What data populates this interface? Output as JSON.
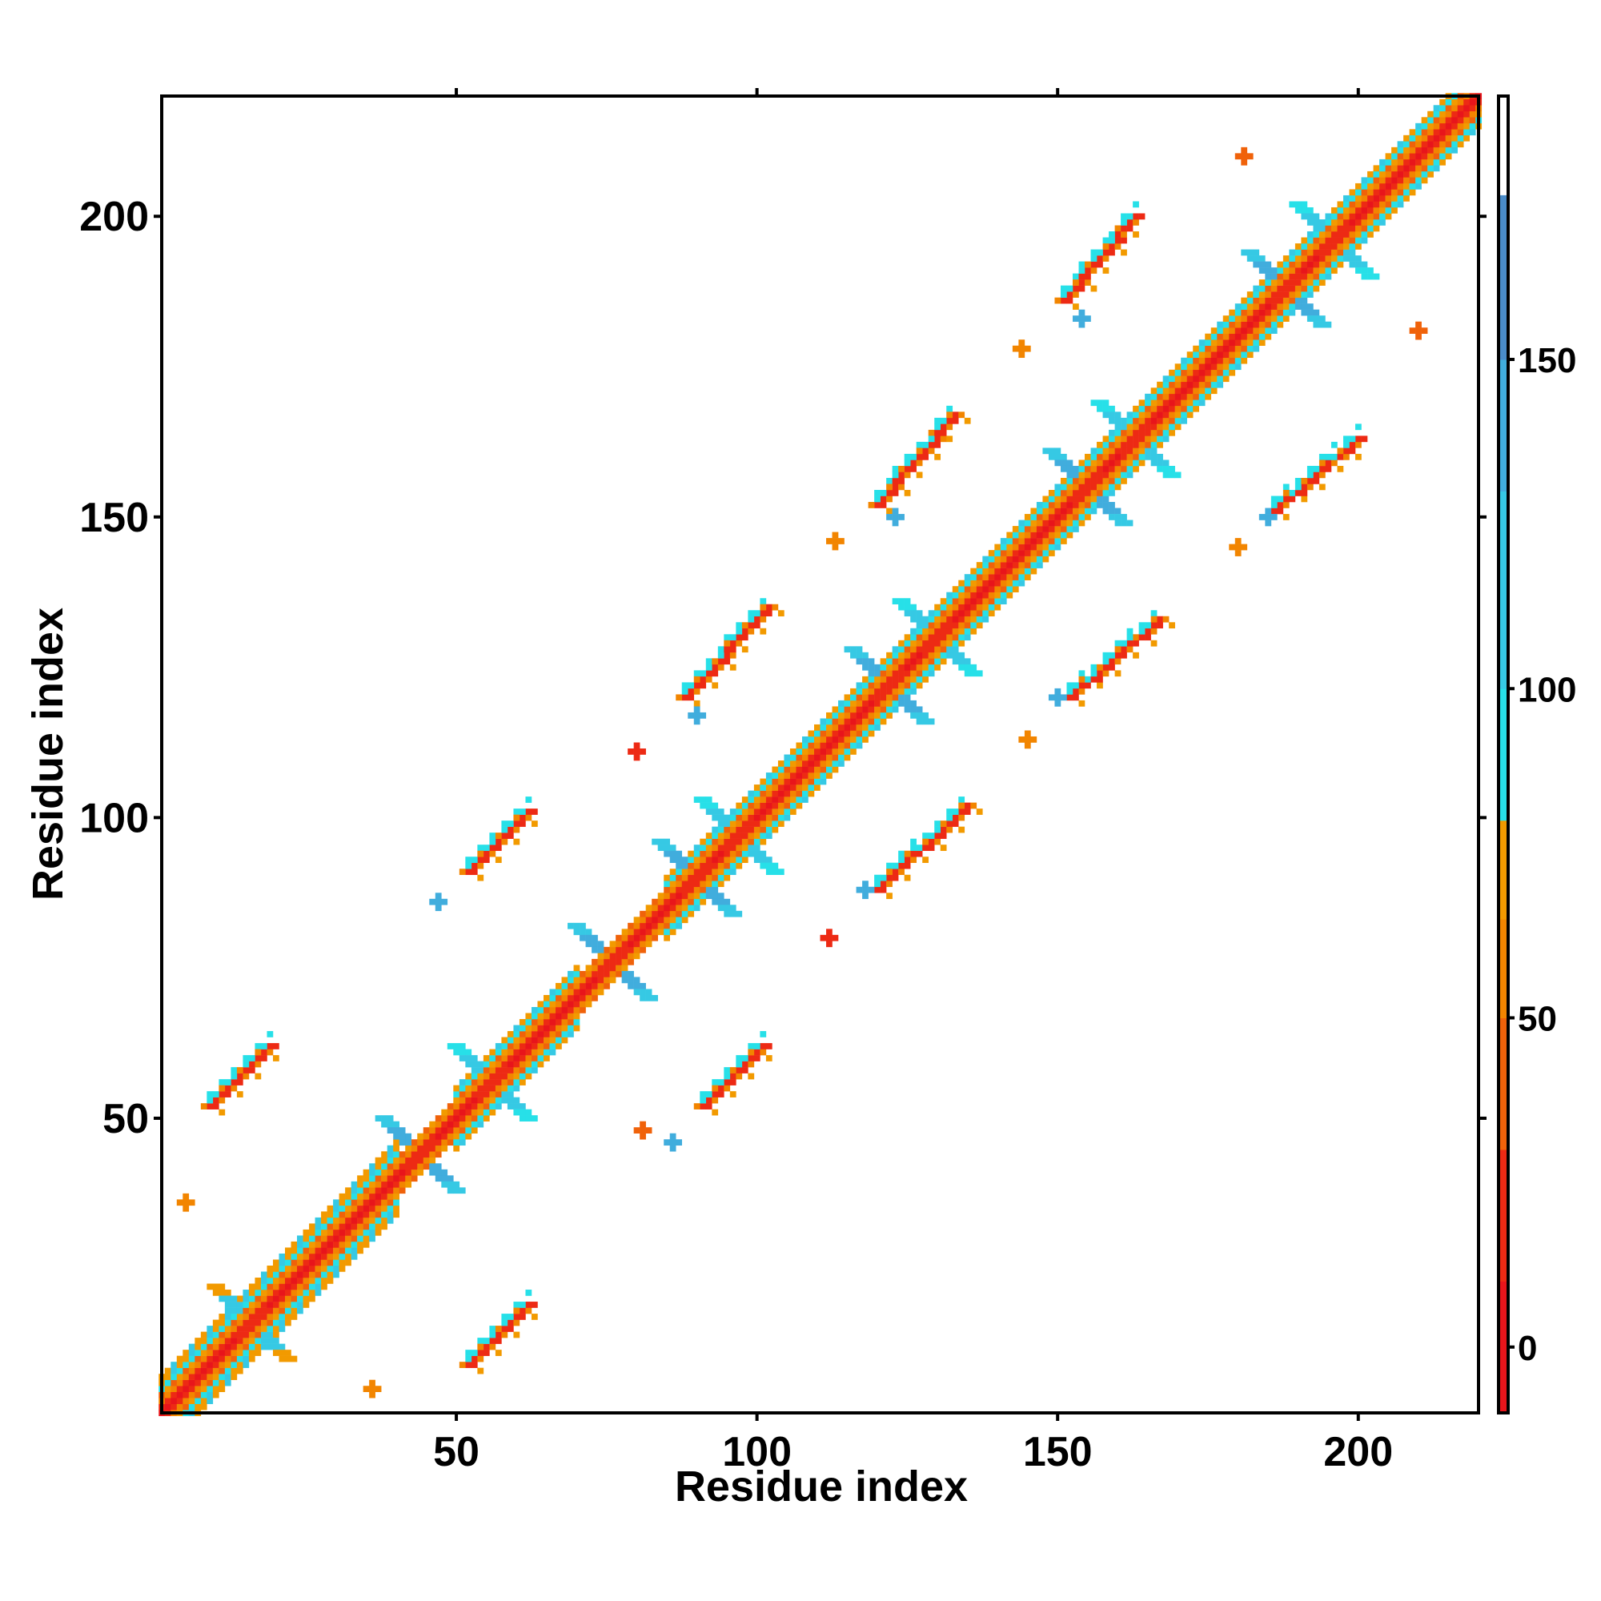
{
  "chart_data": {
    "type": "heatmap",
    "title": "",
    "xlabel": "Residue index",
    "ylabel": "Residue index",
    "xlim": [
      1,
      220
    ],
    "ylim": [
      1,
      220
    ],
    "x_ticks": [
      50,
      100,
      150,
      200
    ],
    "y_ticks": [
      50,
      100,
      150,
      200
    ],
    "x_tick_labels": [
      "50",
      "100",
      "150",
      "200"
    ],
    "y_tick_labels": [
      "50",
      "100",
      "150",
      "200"
    ],
    "grid": false,
    "legend": "colorbar-right",
    "colorbar": {
      "range": [
        -10,
        190
      ],
      "ticks": [
        0,
        50,
        100,
        150
      ],
      "tick_labels": [
        "0",
        "50",
        "100",
        "150"
      ],
      "stops": [
        {
          "from": -10,
          "to": 10,
          "color": "#e8151b"
        },
        {
          "from": 10,
          "to": 30,
          "color": "#ed2a14"
        },
        {
          "from": 30,
          "to": 50,
          "color": "#f0620a"
        },
        {
          "from": 50,
          "to": 65,
          "color": "#f28500"
        },
        {
          "from": 65,
          "to": 80,
          "color": "#f29a00"
        },
        {
          "from": 80,
          "to": 100,
          "color": "#27e0e8"
        },
        {
          "from": 100,
          "to": 130,
          "color": "#36c9e4"
        },
        {
          "from": 130,
          "to": 150,
          "color": "#41addd"
        },
        {
          "from": 150,
          "to": 175,
          "color": "#4a8cc9"
        },
        {
          "from": 175,
          "to": 190,
          "color": "#ffffff"
        }
      ]
    },
    "diagonal_blocks": [
      {
        "from": 1,
        "to": 40,
        "width": 6,
        "value": 60
      },
      {
        "from": 40,
        "to": 50,
        "width": 3,
        "value": 20
      },
      {
        "from": 50,
        "to": 70,
        "width": 5,
        "value": 60
      },
      {
        "from": 70,
        "to": 85,
        "width": 3,
        "value": 40
      },
      {
        "from": 85,
        "to": 115,
        "width": 5,
        "value": 60
      },
      {
        "from": 115,
        "to": 150,
        "width": 5,
        "value": 60
      },
      {
        "from": 150,
        "to": 190,
        "width": 5,
        "value": 60
      },
      {
        "from": 190,
        "to": 220,
        "width": 5,
        "value": 60
      }
    ],
    "turn_crosses": [
      {
        "x": 16,
        "y": 16,
        "value": 100
      },
      {
        "x": 44,
        "y": 44,
        "value": 140
      },
      {
        "x": 56,
        "y": 56,
        "value": 110
      },
      {
        "x": 76,
        "y": 76,
        "value": 140
      },
      {
        "x": 90,
        "y": 90,
        "value": 140
      },
      {
        "x": 97,
        "y": 97,
        "value": 110
      },
      {
        "x": 122,
        "y": 122,
        "value": 140
      },
      {
        "x": 130,
        "y": 130,
        "value": 110
      },
      {
        "x": 155,
        "y": 155,
        "value": 140
      },
      {
        "x": 163,
        "y": 163,
        "value": 110
      },
      {
        "x": 188,
        "y": 188,
        "value": 140
      },
      {
        "x": 196,
        "y": 196,
        "value": 110
      }
    ],
    "off_diagonal_strands": [
      {
        "x0": 52,
        "y0": 9,
        "x1": 62,
        "y1": 19,
        "value": 10
      },
      {
        "x0": 91,
        "y0": 52,
        "x1": 101,
        "y1": 62,
        "value": 10
      },
      {
        "x0": 120,
        "y0": 88,
        "x1": 135,
        "y1": 102,
        "value": 10
      },
      {
        "x0": 152,
        "y0": 120,
        "x1": 167,
        "y1": 133,
        "value": 10
      },
      {
        "x0": 186,
        "y0": 151,
        "x1": 200,
        "y1": 163,
        "value": 10
      },
      {
        "x0": 9,
        "y0": 52,
        "x1": 19,
        "y1": 62,
        "value": 10
      },
      {
        "x0": 52,
        "y0": 91,
        "x1": 62,
        "y1": 101,
        "value": 10
      },
      {
        "x0": 88,
        "y0": 120,
        "x1": 102,
        "y1": 135,
        "value": 10
      },
      {
        "x0": 120,
        "y0": 152,
        "x1": 133,
        "y1": 167,
        "value": 10
      },
      {
        "x0": 151,
        "y0": 186,
        "x1": 163,
        "y1": 200,
        "value": 10
      }
    ],
    "off_diagonal_patches": [
      {
        "x": 86,
        "y": 46,
        "value": 140
      },
      {
        "x": 47,
        "y": 86,
        "value": 140
      },
      {
        "x": 118,
        "y": 88,
        "value": 140
      },
      {
        "x": 90,
        "y": 117,
        "value": 140
      },
      {
        "x": 150,
        "y": 120,
        "value": 140
      },
      {
        "x": 123,
        "y": 150,
        "value": 140
      },
      {
        "x": 185,
        "y": 150,
        "value": 140
      },
      {
        "x": 154,
        "y": 183,
        "value": 140
      },
      {
        "x": 36,
        "y": 5,
        "value": 60
      },
      {
        "x": 5,
        "y": 36,
        "value": 60
      },
      {
        "x": 81,
        "y": 48,
        "value": 30
      },
      {
        "x": 112,
        "y": 80,
        "value": 20
      },
      {
        "x": 145,
        "y": 113,
        "value": 60
      },
      {
        "x": 80,
        "y": 111,
        "value": 20
      },
      {
        "x": 113,
        "y": 146,
        "value": 60
      },
      {
        "x": 144,
        "y": 178,
        "value": 60
      },
      {
        "x": 180,
        "y": 145,
        "value": 60
      },
      {
        "x": 181,
        "y": 210,
        "value": 30
      },
      {
        "x": 210,
        "y": 181,
        "value": 30
      }
    ]
  }
}
